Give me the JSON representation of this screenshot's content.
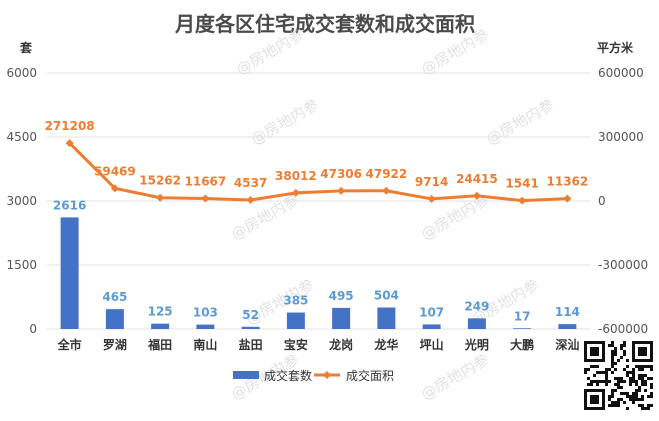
{
  "chart_data": {
    "type": "bar+line",
    "title": "月度各区住宅成交套数和成交面积",
    "left_unit": "套",
    "right_unit": "平方米",
    "categories": [
      "全市",
      "罗湖",
      "福田",
      "南山",
      "盐田",
      "宝安",
      "龙岗",
      "龙华",
      "坪山",
      "光明",
      "大鹏",
      "深汕"
    ],
    "series": [
      {
        "name": "成交套数",
        "type": "bar",
        "axis": "left",
        "color": "#4472c4",
        "label_color": "#5b9bd5",
        "values": [
          2616,
          465,
          125,
          103,
          52,
          385,
          495,
          504,
          107,
          249,
          17,
          114
        ]
      },
      {
        "name": "成交面积",
        "type": "line",
        "axis": "right",
        "color": "#ed7d31",
        "values": [
          271208,
          59469,
          15262,
          11667,
          4537,
          38012,
          47306,
          47922,
          9714,
          24415,
          1541,
          11362
        ]
      }
    ],
    "left_axis": {
      "range": [
        0,
        6000
      ],
      "ticks": [
        0,
        1500,
        3000,
        4500,
        6000
      ]
    },
    "right_axis": {
      "range": [
        -600000,
        600000
      ],
      "ticks": [
        -600000,
        -300000,
        0,
        300000,
        600000
      ]
    },
    "legend_position": "bottom",
    "grid": true
  },
  "watermark_text": "@房地内参"
}
